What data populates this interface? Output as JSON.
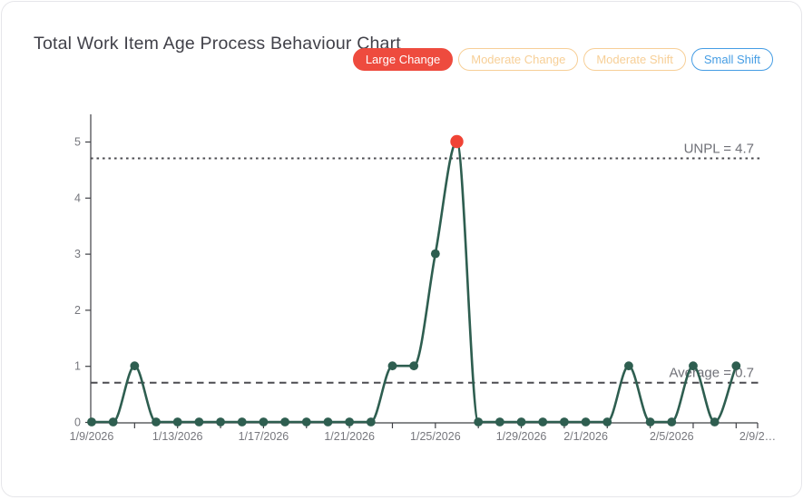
{
  "title": "Total Work Item Age Process Behaviour Chart",
  "badges": [
    {
      "label": "Large Change",
      "style": "filled",
      "color": "#ee4b3e"
    },
    {
      "label": "Moderate Change",
      "style": "outline",
      "color": "#f7cf97"
    },
    {
      "label": "Moderate Shift",
      "style": "outline",
      "color": "#f7cf97"
    },
    {
      "label": "Small Shift",
      "style": "outline",
      "color": "#459de4"
    }
  ],
  "chart_data": {
    "type": "line",
    "title": "Total Work Item Age Process Behaviour Chart",
    "xlabel": "",
    "ylabel": "",
    "x": [
      "1/9/2026",
      "1/10/2026",
      "1/11/2026",
      "1/12/2026",
      "1/13/2026",
      "1/14/2026",
      "1/15/2026",
      "1/16/2026",
      "1/17/2026",
      "1/18/2026",
      "1/19/2026",
      "1/20/2026",
      "1/21/2026",
      "1/22/2026",
      "1/23/2026",
      "1/24/2026",
      "1/25/2026",
      "1/26/2026",
      "1/27/2026",
      "1/28/2026",
      "1/29/2026",
      "1/30/2026",
      "1/31/2026",
      "2/1/2026",
      "2/2/2026",
      "2/3/2026",
      "2/4/2026",
      "2/5/2026",
      "2/6/2026",
      "2/7/2026",
      "2/8/2026"
    ],
    "values": [
      0,
      0,
      1,
      0,
      0,
      0,
      0,
      0,
      0,
      0,
      0,
      0,
      0,
      0,
      1,
      1,
      3,
      5,
      0,
      0,
      0,
      0,
      0,
      0,
      0,
      1,
      0,
      0,
      1,
      0,
      1
    ],
    "series_color": "#2e5e50",
    "highlight": {
      "index": 17,
      "date": "1/26/2026",
      "value": 5,
      "color": "#f04335",
      "meaning": "large-change-point"
    },
    "reference_lines": [
      {
        "label": "UNPL = 4.7",
        "value": 4.7,
        "style": "dotted"
      },
      {
        "label": "Average = 0.7",
        "value": 0.7,
        "style": "dashed"
      }
    ],
    "yticks": [
      0,
      1,
      2,
      3,
      4,
      5
    ],
    "ylim": [
      0,
      5.45
    ],
    "xtick_labels": [
      {
        "day": 0,
        "label": "1/9/2026"
      },
      {
        "day": 4,
        "label": "1/13/2026"
      },
      {
        "day": 8,
        "label": "1/17/2026"
      },
      {
        "day": 12,
        "label": "1/21/2026"
      },
      {
        "day": 16,
        "label": "1/25/2026"
      },
      {
        "day": 20,
        "label": "1/29/2026"
      },
      {
        "day": 23,
        "label": "2/1/2026"
      },
      {
        "day": 27,
        "label": "2/5/2026"
      },
      {
        "day": 31,
        "label": "2/9/2…"
      }
    ],
    "axis_days_total": 31,
    "grid": false,
    "legend": "none"
  }
}
